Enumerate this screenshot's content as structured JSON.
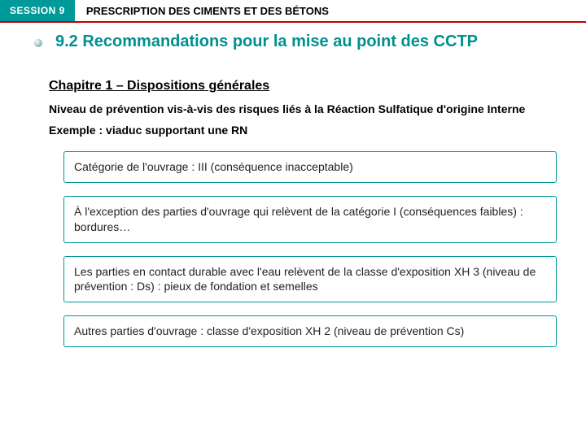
{
  "colors": {
    "teal": "#009999",
    "headerRule": "#c00000",
    "headingText": "#009090",
    "boxBorder": "#009999",
    "text": "#000000"
  },
  "header": {
    "session": "SESSION 9",
    "title": "PRESCRIPTION DES CIMENTS ET DES BÉTONS"
  },
  "main": {
    "heading": "9.2 Recommandations pour la mise au point des CCTP",
    "chapter": "Chapitre  1 – Dispositions générales",
    "subtitle": "Niveau de prévention vis-à-vis des risques liés à la Réaction Sulfatique d'origine Interne",
    "example": "Exemple : viaduc supportant une RN",
    "items": [
      "Catégorie de l'ouvrage : III (conséquence inacceptable)",
      "À l'exception des parties d'ouvrage qui relèvent de la catégorie I (conséquences faibles) : bordures…",
      "Les parties en contact durable avec l'eau relèvent de la classe d'exposition XH 3 (niveau de prévention : Ds) : pieux de fondation et semelles",
      "Autres parties d'ouvrage : classe d'exposition XH 2 (niveau de prévention Cs)"
    ]
  }
}
